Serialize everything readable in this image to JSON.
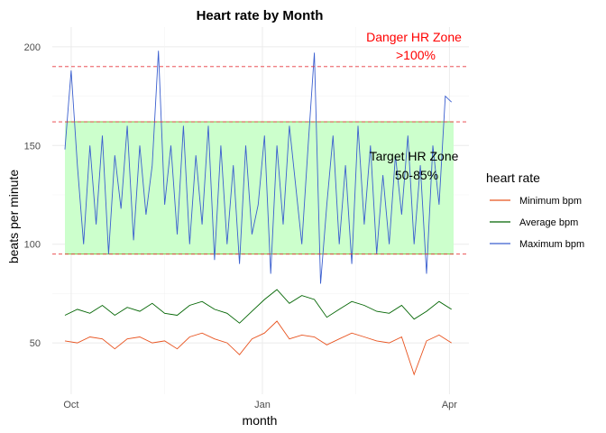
{
  "chart_data": {
    "type": "line",
    "title": "Heart rate by Month",
    "xlabel": "month",
    "ylabel": "beats per minute",
    "x_ticks": [
      "Oct",
      "Jan",
      "Apr"
    ],
    "y_ticks": [
      50,
      100,
      150,
      200
    ],
    "ylim": [
      24,
      210
    ],
    "x_range": [
      "2021-09-28",
      "2022-04-03"
    ],
    "grid": true,
    "legend": {
      "title": "heart rate",
      "position": "right",
      "items": [
        "Minimum bpm",
        "Average bpm",
        "Maximum bpm"
      ]
    },
    "zones": {
      "target": {
        "low": 95,
        "high": 162,
        "fill": "#ccffcc",
        "label_line1": "Target HR Zone",
        "label_line2": "50-85%"
      },
      "danger": {
        "threshold": 190,
        "label_line1": "Danger HR Zone",
        "label_line2": ">100%",
        "color": "#ff0000"
      },
      "reference_lines": [
        95,
        162,
        190
      ]
    },
    "series": [
      {
        "name": "Minimum bpm",
        "color": "#e8531f",
        "x": [
          "2021-09-28",
          "2021-10-04",
          "2021-10-10",
          "2021-10-16",
          "2021-10-22",
          "2021-10-28",
          "2021-11-03",
          "2021-11-09",
          "2021-11-15",
          "2021-11-21",
          "2021-11-27",
          "2021-12-03",
          "2021-12-09",
          "2021-12-15",
          "2021-12-21",
          "2021-12-27",
          "2022-01-02",
          "2022-01-08",
          "2022-01-14",
          "2022-01-20",
          "2022-01-26",
          "2022-02-01",
          "2022-02-07",
          "2022-02-13",
          "2022-02-19",
          "2022-02-25",
          "2022-03-03",
          "2022-03-09",
          "2022-03-15",
          "2022-03-21",
          "2022-03-27",
          "2022-04-02"
        ],
        "values": [
          51,
          50,
          53,
          52,
          47,
          52,
          53,
          50,
          51,
          47,
          53,
          55,
          52,
          50,
          44,
          52,
          55,
          61,
          52,
          54,
          53,
          49,
          52,
          55,
          53,
          51,
          50,
          53,
          34,
          51,
          54,
          50
        ]
      },
      {
        "name": "Average bpm",
        "color": "#006400",
        "x": [
          "2021-09-28",
          "2021-10-04",
          "2021-10-10",
          "2021-10-16",
          "2021-10-22",
          "2021-10-28",
          "2021-11-03",
          "2021-11-09",
          "2021-11-15",
          "2021-11-21",
          "2021-11-27",
          "2021-12-03",
          "2021-12-09",
          "2021-12-15",
          "2021-12-21",
          "2021-12-27",
          "2022-01-02",
          "2022-01-08",
          "2022-01-14",
          "2022-01-20",
          "2022-01-26",
          "2022-02-01",
          "2022-02-07",
          "2022-02-13",
          "2022-02-19",
          "2022-02-25",
          "2022-03-03",
          "2022-03-09",
          "2022-03-15",
          "2022-03-21",
          "2022-03-27",
          "2022-04-02"
        ],
        "values": [
          64,
          67,
          65,
          69,
          64,
          68,
          66,
          70,
          65,
          64,
          69,
          71,
          67,
          65,
          60,
          66,
          72,
          77,
          70,
          74,
          72,
          63,
          67,
          71,
          69,
          66,
          65,
          69,
          62,
          66,
          71,
          67
        ]
      },
      {
        "name": "Maximum bpm",
        "color": "#3b5fcf",
        "x": [
          "2021-09-28",
          "2021-10-01",
          "2021-10-04",
          "2021-10-07",
          "2021-10-10",
          "2021-10-13",
          "2021-10-16",
          "2021-10-19",
          "2021-10-22",
          "2021-10-25",
          "2021-10-28",
          "2021-10-31",
          "2021-11-03",
          "2021-11-06",
          "2021-11-09",
          "2021-11-12",
          "2021-11-15",
          "2021-11-18",
          "2021-11-21",
          "2021-11-24",
          "2021-11-27",
          "2021-11-30",
          "2021-12-03",
          "2021-12-06",
          "2021-12-09",
          "2021-12-12",
          "2021-12-15",
          "2021-12-18",
          "2021-12-21",
          "2021-12-24",
          "2021-12-27",
          "2021-12-30",
          "2022-01-02",
          "2022-01-05",
          "2022-01-08",
          "2022-01-11",
          "2022-01-14",
          "2022-01-17",
          "2022-01-20",
          "2022-01-23",
          "2022-01-26",
          "2022-01-29",
          "2022-02-01",
          "2022-02-04",
          "2022-02-07",
          "2022-02-10",
          "2022-02-13",
          "2022-02-16",
          "2022-02-19",
          "2022-02-22",
          "2022-02-25",
          "2022-02-28",
          "2022-03-03",
          "2022-03-06",
          "2022-03-09",
          "2022-03-12",
          "2022-03-15",
          "2022-03-18",
          "2022-03-21",
          "2022-03-24",
          "2022-03-27",
          "2022-03-30",
          "2022-04-02"
        ],
        "values": [
          148,
          188,
          140,
          100,
          150,
          110,
          155,
          95,
          145,
          118,
          160,
          102,
          150,
          115,
          140,
          198,
          120,
          150,
          105,
          160,
          100,
          145,
          110,
          160,
          92,
          150,
          100,
          140,
          90,
          150,
          105,
          120,
          155,
          85,
          150,
          110,
          160,
          130,
          100,
          150,
          197,
          80,
          120,
          155,
          100,
          140,
          90,
          160,
          110,
          150,
          95,
          135,
          100,
          145,
          115,
          155,
          100,
          140,
          85,
          150,
          120,
          175,
          172
        ]
      }
    ]
  }
}
